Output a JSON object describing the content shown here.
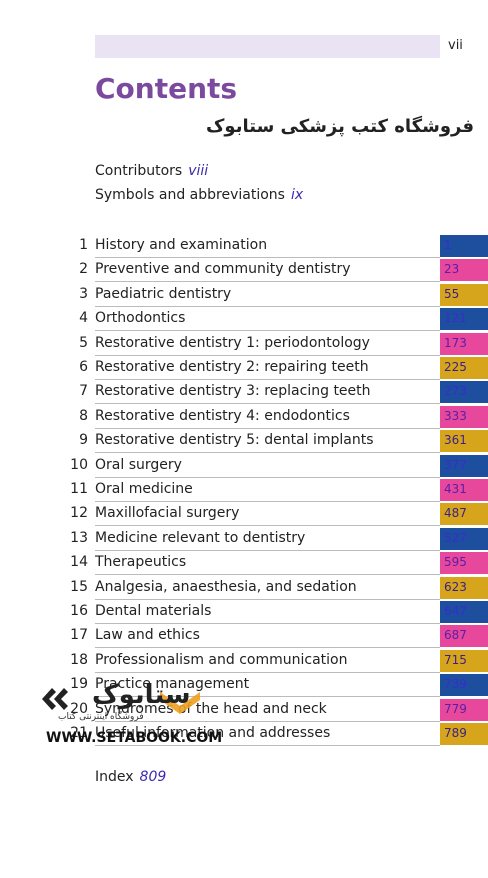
{
  "header": {
    "page_number": "vii"
  },
  "title": "Contents",
  "store_name": "فروشگاه کتب پزشکی ستابوک",
  "front_matter": [
    {
      "label": "Contributors",
      "page": "viii"
    },
    {
      "label": "Symbols and abbreviations",
      "page": "ix"
    }
  ],
  "chapters": [
    {
      "number": "1",
      "title": "History and examination",
      "page": "1"
    },
    {
      "number": "2",
      "title": "Preventive and community dentistry",
      "page": "23"
    },
    {
      "number": "3",
      "title": "Paediatric dentistry",
      "page": "55"
    },
    {
      "number": "4",
      "title": "Orthodontics",
      "page": "121"
    },
    {
      "number": "5",
      "title": "Restorative dentistry 1: periodontology",
      "page": "173"
    },
    {
      "number": "6",
      "title": "Restorative dentistry 2: repairing teeth",
      "page": "225"
    },
    {
      "number": "7",
      "title": "Restorative dentistry 3: replacing teeth",
      "page": "273"
    },
    {
      "number": "8",
      "title": "Restorative dentistry 4: endodontics",
      "page": "333"
    },
    {
      "number": "9",
      "title": "Restorative dentistry 5: dental implants",
      "page": "361"
    },
    {
      "number": "10",
      "title": "Oral surgery",
      "page": "377"
    },
    {
      "number": "11",
      "title": "Oral medicine",
      "page": "431"
    },
    {
      "number": "12",
      "title": "Maxillofacial surgery",
      "page": "487"
    },
    {
      "number": "13",
      "title": "Medicine relevant to dentistry",
      "page": "527"
    },
    {
      "number": "14",
      "title": "Therapeutics",
      "page": "595"
    },
    {
      "number": "15",
      "title": "Analgesia, anaesthesia, and sedation",
      "page": "623"
    },
    {
      "number": "16",
      "title": "Dental materials",
      "page": "647"
    },
    {
      "number": "17",
      "title": "Law and ethics",
      "page": "687"
    },
    {
      "number": "18",
      "title": "Professionalism and communication",
      "page": "715"
    },
    {
      "number": "19",
      "title": "Practice management",
      "page": "739"
    },
    {
      "number": "20",
      "title": "Syndromes of the head and neck",
      "page": "779"
    },
    {
      "number": "21",
      "title": "Useful information and addresses",
      "page": "789"
    }
  ],
  "index": {
    "label": "Index",
    "page": "809"
  },
  "watermark": {
    "name": "ستابوک",
    "tagline": "فروشگاه اینترنتی کتاب",
    "url": "WWW.SETABOOK.COM"
  }
}
